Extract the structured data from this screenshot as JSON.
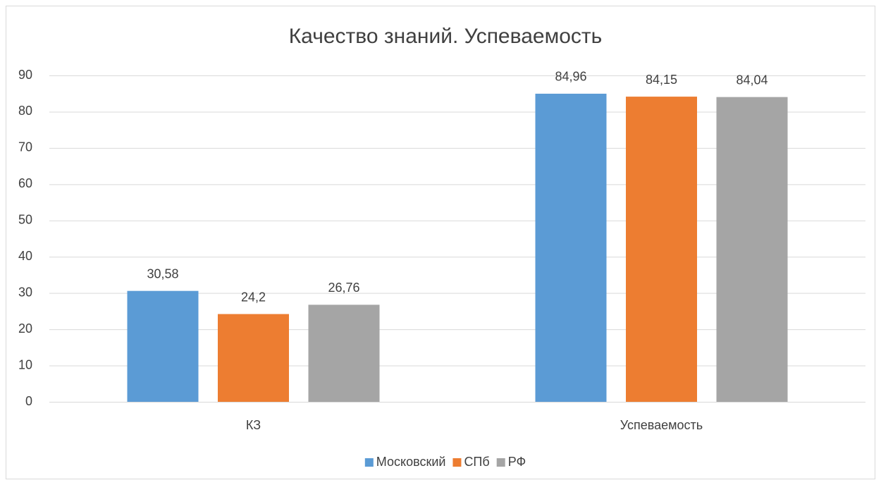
{
  "chart_data": {
    "type": "bar",
    "title": "Качество знаний. Успеваемость",
    "categories": [
      "КЗ",
      "Успеваемость"
    ],
    "series": [
      {
        "name": "Московский",
        "color": "#5b9bd5",
        "values": [
          30.58,
          84.96
        ],
        "value_labels": [
          "30,58",
          "84,96"
        ]
      },
      {
        "name": "СПб",
        "color": "#ed7d31",
        "values": [
          24.2,
          84.15
        ],
        "value_labels": [
          "24,2",
          "84,15"
        ]
      },
      {
        "name": "РФ",
        "color": "#a5a5a5",
        "values": [
          26.76,
          84.04
        ],
        "value_labels": [
          "26,76",
          "84,04"
        ]
      }
    ],
    "ylim": [
      0,
      90
    ],
    "yticks": [
      0,
      10,
      20,
      30,
      40,
      50,
      60,
      70,
      80,
      90
    ],
    "grid": true,
    "legend": "bottom"
  }
}
